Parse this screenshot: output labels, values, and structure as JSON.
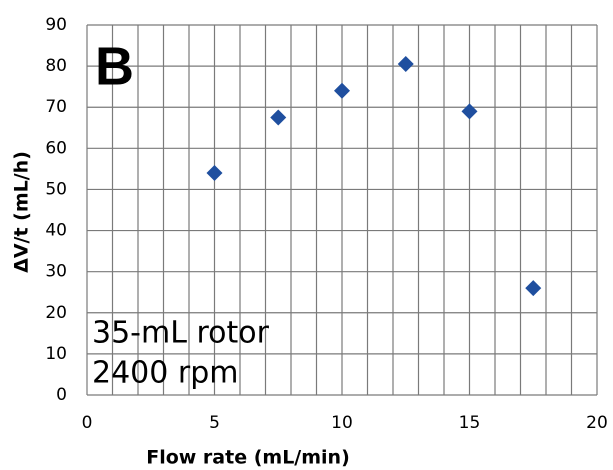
{
  "chart_data": {
    "type": "scatter",
    "panel_label": "B",
    "annotations": [
      "35-mL rotor",
      "2400 rpm"
    ],
    "xlabel": "Flow rate (mL/min)",
    "ylabel": "ΔV/t (mL/h)",
    "x": [
      5,
      7.5,
      10,
      12.5,
      15,
      17.5
    ],
    "values": [
      54,
      67.5,
      74,
      80.5,
      69,
      26
    ],
    "color": "#1f4f9f",
    "marker": "diamond",
    "xlim": [
      0,
      20
    ],
    "xticks": [
      0,
      5,
      10,
      15,
      20
    ],
    "xgrid": [
      0,
      1,
      2,
      3,
      4,
      5,
      6,
      7,
      8,
      9,
      10,
      11,
      12,
      13,
      14,
      15,
      16,
      17,
      18,
      19,
      20
    ],
    "ylim": [
      0,
      90
    ],
    "yticks": [
      0,
      10,
      20,
      30,
      40,
      50,
      60,
      70,
      80,
      90
    ],
    "grid": true
  }
}
